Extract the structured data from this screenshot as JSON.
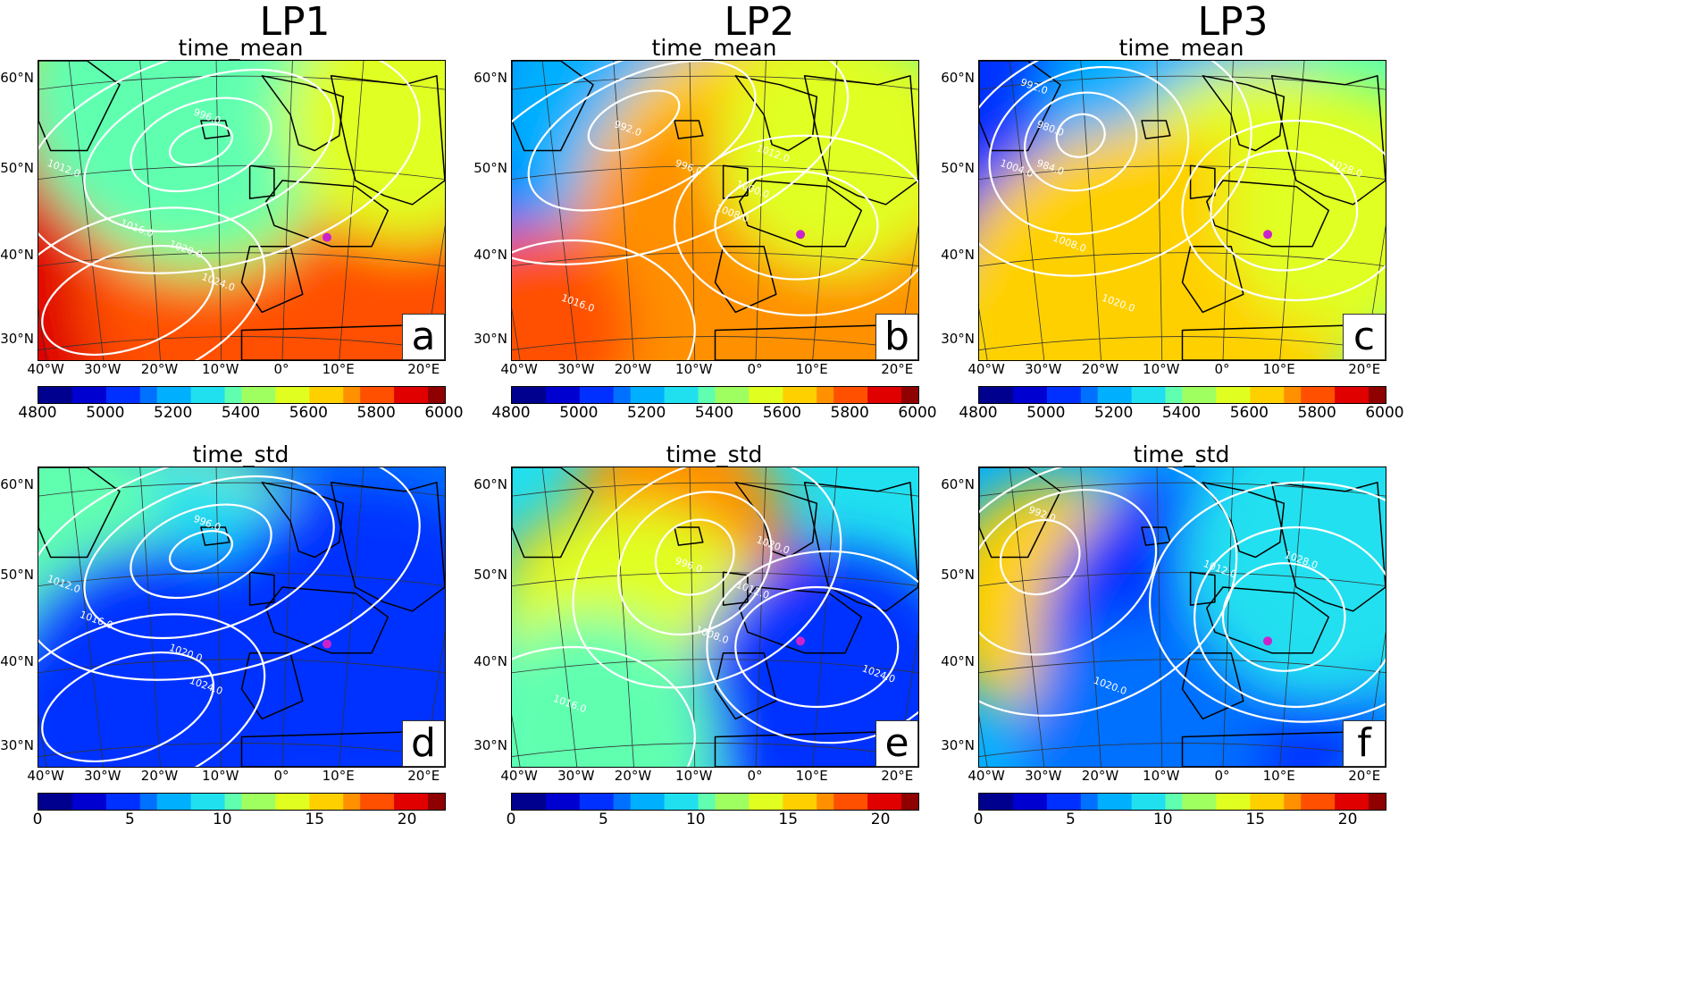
{
  "columns": [
    "LP1",
    "LP2",
    "LP3"
  ],
  "rows": [
    {
      "subtitle": "time_mean",
      "colorbar_ticks": [
        "4800",
        "5000",
        "5200",
        "5400",
        "5600",
        "5800",
        "6000"
      ]
    },
    {
      "subtitle": "time_std",
      "colorbar_ticks": [
        "0",
        "5",
        "10",
        "15",
        "20"
      ]
    }
  ],
  "panels": [
    {
      "letter": "a",
      "column": "LP1",
      "row": "time_mean",
      "contours": [
        "996.0",
        "1016.0",
        "1020.0",
        "1024.0",
        "1012.0"
      ]
    },
    {
      "letter": "b",
      "column": "LP2",
      "row": "time_mean",
      "contours": [
        "992.0",
        "996.0",
        "1000.0",
        "1008.0",
        "1012.0",
        "1016.0"
      ]
    },
    {
      "letter": "c",
      "column": "LP3",
      "row": "time_mean",
      "contours": [
        "992.0",
        "980.0",
        "984.0",
        "1004.0",
        "1008.0",
        "1020.0",
        "1028.0"
      ]
    },
    {
      "letter": "d",
      "column": "LP1",
      "row": "time_std",
      "contours": [
        "996.0",
        "1016.0",
        "1020.0",
        "1024.0",
        "1012.0"
      ]
    },
    {
      "letter": "e",
      "column": "LP2",
      "row": "time_std",
      "contours": [
        "996.0",
        "1008.0",
        "1012.0",
        "1016.0",
        "1020.0",
        "1024.0"
      ]
    },
    {
      "letter": "f",
      "column": "LP3",
      "row": "time_std",
      "contours": [
        "992.0",
        "1012.0",
        "1020.0",
        "1028.0"
      ]
    }
  ],
  "lat_labels": [
    "60°N",
    "50°N",
    "40°N",
    "30°N"
  ],
  "lon_labels": [
    "40°W",
    "30°W",
    "20°W",
    "10°W",
    "0°",
    "10°E",
    "20°E"
  ],
  "colormap": [
    "#00008f",
    "#0000d0",
    "#0030ff",
    "#0070ff",
    "#00b0ff",
    "#20e0f0",
    "#60ffb0",
    "#a0ff60",
    "#e0ff20",
    "#ffd000",
    "#ff9000",
    "#ff5000",
    "#e00000",
    "#8f0000"
  ],
  "contour_color": "#ffffff",
  "marker_color": "#cc22cc",
  "coastline_color": "#000000"
}
